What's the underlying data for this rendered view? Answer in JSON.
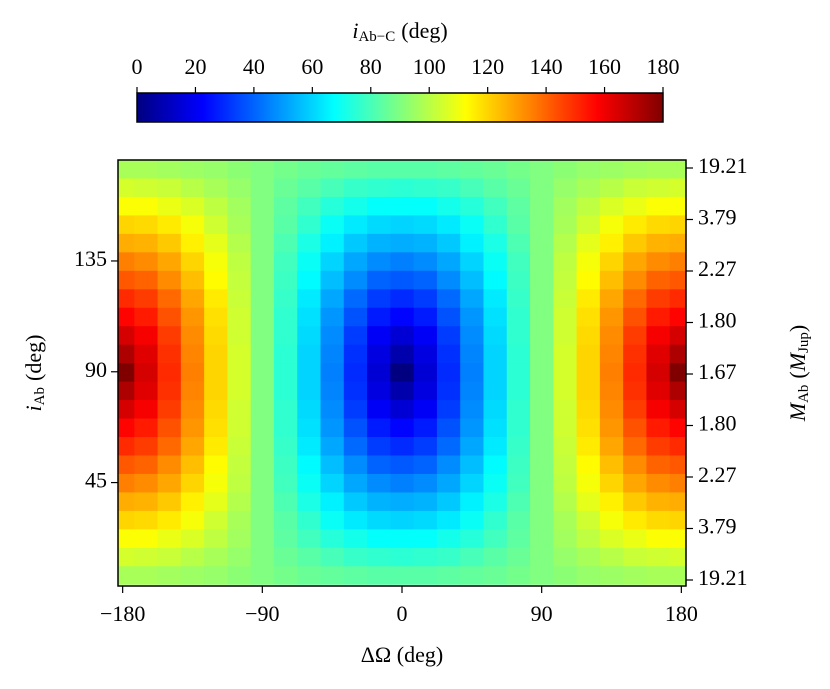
{
  "chart_data": {
    "type": "heatmap",
    "colormap": "jet",
    "x": [
      -180,
      -165,
      -150,
      -135,
      -120,
      -105,
      -90,
      -75,
      -60,
      -45,
      -30,
      -15,
      0,
      15,
      30,
      45,
      60,
      75,
      90,
      105,
      120,
      135,
      150,
      165,
      180
    ],
    "y": [
      7.5,
      15,
      22.5,
      30,
      37.5,
      45,
      52.5,
      60,
      67.5,
      75,
      82.5,
      90,
      97.5,
      105,
      112.5,
      120,
      127.5,
      135,
      142.5,
      150,
      157.5,
      165,
      172.5
    ],
    "values": [
      [
        97,
        97,
        96,
        95,
        94,
        92,
        90,
        88,
        86,
        85,
        84,
        83,
        83,
        83,
        84,
        85,
        86,
        88,
        90,
        92,
        94,
        95,
        96,
        97,
        97
      ],
      [
        105,
        104,
        103,
        100,
        97,
        94,
        90,
        86,
        83,
        80,
        77,
        76,
        75,
        76,
        77,
        80,
        83,
        86,
        90,
        94,
        97,
        100,
        103,
        104,
        105
      ],
      [
        112,
        112,
        109,
        106,
        101,
        96,
        90,
        84,
        79,
        74,
        71,
        68,
        68,
        68,
        71,
        74,
        79,
        84,
        90,
        96,
        101,
        106,
        109,
        112,
        112
      ],
      [
        120,
        119,
        116,
        111,
        104,
        97,
        90,
        83,
        76,
        69,
        64,
        61,
        60,
        61,
        64,
        69,
        76,
        83,
        90,
        97,
        104,
        111,
        116,
        119,
        120
      ],
      [
        127,
        126,
        122,
        115,
        108,
        99,
        90,
        81,
        72,
        65,
        58,
        54,
        53,
        54,
        58,
        65,
        72,
        81,
        90,
        99,
        108,
        115,
        122,
        126,
        127
      ],
      [
        135,
        133,
        128,
        120,
        111,
        101,
        90,
        79,
        69,
        60,
        52,
        47,
        45,
        47,
        52,
        60,
        69,
        79,
        90,
        101,
        111,
        120,
        128,
        133,
        135
      ],
      [
        142,
        140,
        133,
        124,
        113,
        102,
        90,
        78,
        67,
        56,
        47,
        40,
        38,
        40,
        47,
        56,
        67,
        78,
        90,
        102,
        113,
        124,
        133,
        140,
        142
      ],
      [
        150,
        147,
        139,
        128,
        116,
        103,
        90,
        77,
        64,
        52,
        41,
        33,
        30,
        33,
        41,
        52,
        64,
        77,
        90,
        103,
        116,
        128,
        139,
        147,
        150
      ],
      [
        157,
        153,
        143,
        131,
        118,
        104,
        90,
        76,
        62,
        49,
        37,
        27,
        23,
        27,
        37,
        49,
        62,
        76,
        90,
        104,
        118,
        131,
        143,
        153,
        157
      ],
      [
        165,
        159,
        147,
        133,
        119,
        104,
        90,
        76,
        61,
        47,
        33,
        21,
        15,
        21,
        33,
        47,
        61,
        76,
        90,
        104,
        119,
        133,
        147,
        159,
        165
      ],
      [
        172,
        163,
        149,
        134,
        120,
        105,
        90,
        75,
        60,
        46,
        31,
        17,
        8,
        17,
        31,
        46,
        60,
        75,
        90,
        105,
        120,
        134,
        149,
        163,
        172
      ],
      [
        180,
        165,
        150,
        135,
        120,
        105,
        90,
        75,
        60,
        45,
        30,
        15,
        0,
        15,
        30,
        45,
        60,
        75,
        90,
        105,
        120,
        135,
        150,
        165,
        180
      ],
      [
        172,
        163,
        149,
        134,
        120,
        105,
        90,
        75,
        60,
        46,
        31,
        17,
        8,
        17,
        31,
        46,
        60,
        75,
        90,
        105,
        120,
        134,
        149,
        163,
        172
      ],
      [
        165,
        159,
        147,
        133,
        119,
        104,
        90,
        76,
        61,
        47,
        33,
        21,
        15,
        21,
        33,
        47,
        61,
        76,
        90,
        104,
        119,
        133,
        147,
        159,
        165
      ],
      [
        157,
        153,
        143,
        131,
        118,
        104,
        90,
        76,
        62,
        49,
        37,
        27,
        23,
        27,
        37,
        49,
        62,
        76,
        90,
        104,
        118,
        131,
        143,
        153,
        157
      ],
      [
        150,
        147,
        139,
        128,
        116,
        103,
        90,
        77,
        64,
        52,
        41,
        33,
        30,
        33,
        41,
        52,
        64,
        77,
        90,
        103,
        116,
        128,
        139,
        147,
        150
      ],
      [
        142,
        140,
        133,
        124,
        113,
        102,
        90,
        78,
        67,
        56,
        47,
        40,
        38,
        40,
        47,
        56,
        67,
        78,
        90,
        102,
        113,
        124,
        133,
        140,
        142
      ],
      [
        135,
        133,
        128,
        120,
        111,
        101,
        90,
        79,
        69,
        60,
        52,
        47,
        45,
        47,
        52,
        60,
        69,
        79,
        90,
        101,
        111,
        120,
        128,
        133,
        135
      ],
      [
        127,
        126,
        122,
        115,
        108,
        99,
        90,
        81,
        72,
        65,
        58,
        54,
        53,
        54,
        58,
        65,
        72,
        81,
        90,
        99,
        108,
        115,
        122,
        126,
        127
      ],
      [
        120,
        119,
        116,
        111,
        104,
        97,
        90,
        83,
        76,
        69,
        64,
        61,
        60,
        61,
        64,
        69,
        76,
        83,
        90,
        97,
        104,
        111,
        116,
        119,
        120
      ],
      [
        112,
        112,
        109,
        106,
        101,
        96,
        90,
        84,
        79,
        74,
        71,
        68,
        68,
        68,
        71,
        74,
        79,
        84,
        90,
        96,
        101,
        106,
        109,
        112,
        112
      ],
      [
        105,
        104,
        103,
        100,
        97,
        94,
        90,
        86,
        83,
        80,
        77,
        76,
        75,
        76,
        77,
        80,
        83,
        86,
        90,
        94,
        97,
        100,
        103,
        104,
        105
      ],
      [
        97,
        97,
        96,
        95,
        94,
        92,
        90,
        88,
        86,
        85,
        84,
        83,
        83,
        83,
        84,
        85,
        86,
        88,
        90,
        92,
        94,
        95,
        96,
        97,
        97
      ]
    ],
    "xlim": [
      -183,
      183
    ],
    "xticks": [
      {
        "value": -180,
        "label": "−180"
      },
      {
        "value": -90,
        "label": "−90"
      },
      0,
      90,
      180
    ],
    "ylim": [
      3,
      176
    ],
    "yticks": [
      45,
      90,
      135
    ],
    "y2ticks": [
      19.21,
      3.79,
      2.27,
      {
        "value": 1.8,
        "label": "1.80"
      },
      1.67,
      {
        "value": 1.8,
        "label": "1.80"
      },
      2.27,
      3.79,
      19.21
    ],
    "xlabel": "ΔΩ (deg)",
    "ylabel": {
      "symbol": "i",
      "subscript": "Ab",
      "unit": "(deg)"
    },
    "y2label": {
      "symbol": "M",
      "subscript": "Ab",
      "open": "(",
      "unit_symbol": "M",
      "unit_subscript": "Jup",
      "close": ")"
    },
    "colorbar": {
      "lim": [
        0,
        180
      ],
      "ticks": [
        0,
        20,
        40,
        60,
        80,
        100,
        120,
        140,
        160,
        180
      ],
      "label": {
        "symbol": "i",
        "subscript": "Ab−C",
        "unit": "(deg)"
      }
    }
  }
}
